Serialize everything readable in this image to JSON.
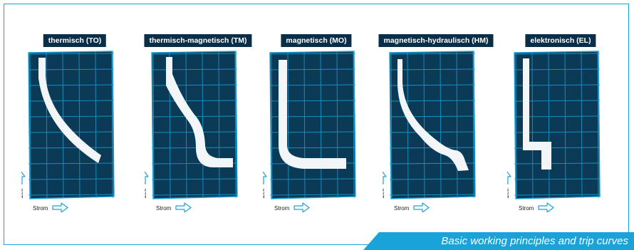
{
  "colors": {
    "accent": "#1aa3d9",
    "panel_fill": "#0b3a56",
    "label_bg": "#0b2e48",
    "curve": "#f3f6f8"
  },
  "panels": [
    {
      "title": "thermisch (TO)",
      "time_axis": "Zeit",
      "current_axis": "Strom",
      "curve_type": "thermal"
    },
    {
      "title": "thermisch-magnetisch (TM)",
      "time_axis": "Zeit",
      "current_axis": "Strom",
      "curve_type": "thermal-magnetic"
    },
    {
      "title": "magnetisch (MO)",
      "time_axis": "Zeit",
      "current_axis": "Strom",
      "curve_type": "magnetic"
    },
    {
      "title": "magnetisch-hydraulisch (HM)",
      "time_axis": "Zeit",
      "current_axis": "Strom",
      "curve_type": "magnetic-hydraulic"
    },
    {
      "title": "elektronisch (EL)",
      "time_axis": "Zeit",
      "current_axis": "Strom",
      "curve_type": "electronic"
    }
  ],
  "footer": {
    "caption": "Basic working principles and trip curves"
  }
}
